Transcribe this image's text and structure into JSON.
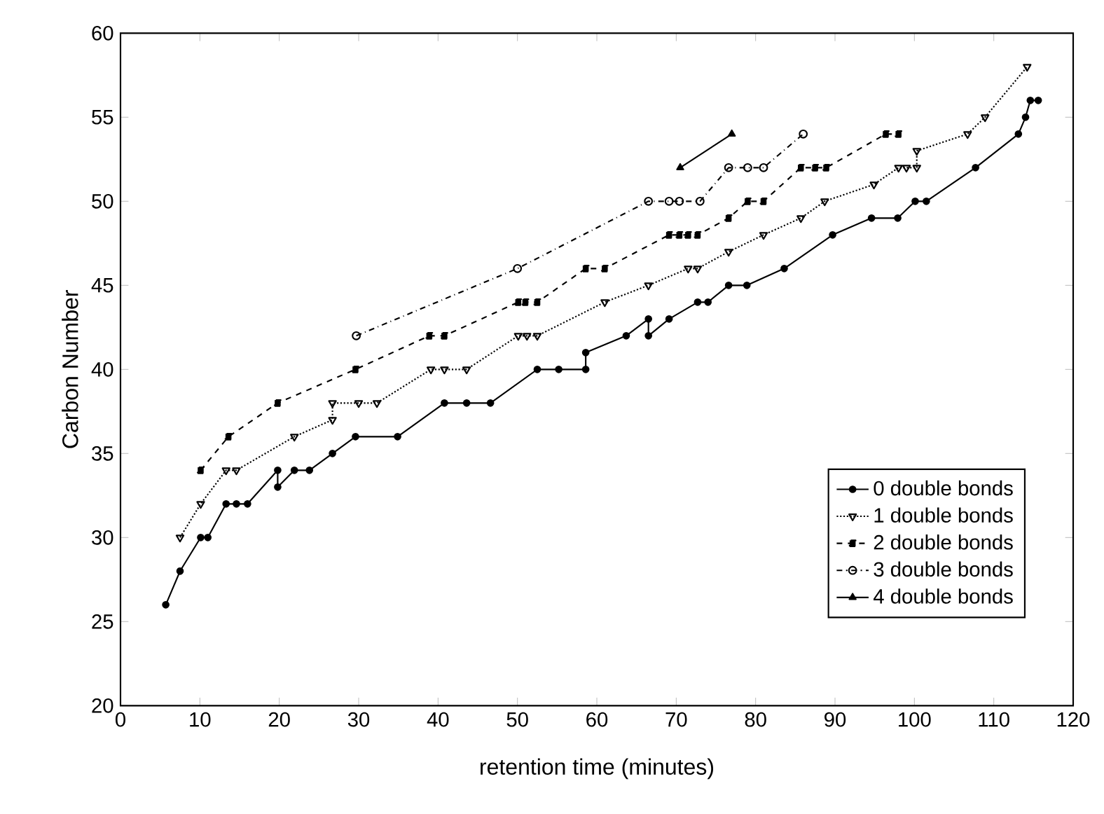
{
  "chart_data": {
    "type": "line",
    "xlabel": "retention time (minutes)",
    "ylabel": "Carbon Number",
    "xlim": [
      0,
      120
    ],
    "ylim": [
      20,
      60
    ],
    "xticks": [
      0,
      10,
      20,
      30,
      40,
      50,
      60,
      70,
      80,
      90,
      100,
      110,
      120
    ],
    "yticks": [
      20,
      25,
      30,
      35,
      40,
      45,
      50,
      55,
      60
    ],
    "grid": false,
    "legend": "bottom right",
    "series": [
      {
        "name": "0 double bonds",
        "color": "#000000",
        "marker": "circle",
        "line_style": "solid",
        "x": [
          5.7,
          7.5,
          10.1,
          11,
          13.3,
          14.6,
          16,
          19.8,
          19.8,
          21.9,
          23.8,
          26.7,
          29.6,
          34.9,
          40.8,
          43.6,
          46.6,
          52.5,
          55.2,
          58.6,
          58.6,
          63.7,
          66.5,
          66.5,
          69.1,
          72.7,
          74,
          76.6,
          78.9,
          83.6,
          89.7,
          94.6,
          97.9,
          100.1,
          101.5,
          107.7,
          113.1,
          114,
          114.6,
          115.6
        ],
        "values": [
          26,
          28,
          30,
          30,
          32,
          32,
          32,
          34,
          33,
          34,
          34,
          35,
          36,
          36,
          38,
          38,
          38,
          40,
          40,
          40,
          41,
          42,
          43,
          42,
          43,
          44,
          44,
          45,
          45,
          46,
          48,
          49,
          49,
          50,
          50,
          52,
          54,
          55,
          56,
          56
        ]
      },
      {
        "name": "1 double bonds",
        "color": "#000000",
        "marker": "triangle",
        "line_style": "dotted",
        "x": [
          7.5,
          10.1,
          13.3,
          14.6,
          21.9,
          26.7,
          26.7,
          30,
          32.3,
          39.1,
          40.8,
          43.6,
          50.1,
          51.2,
          52.5,
          61,
          66.5,
          71.5,
          72.7,
          76.6,
          81,
          85.7,
          88.7,
          94.9,
          98,
          99,
          100.3,
          100.3,
          106.7,
          108.9,
          114.2
        ],
        "values": [
          30,
          32,
          34,
          34,
          36,
          37,
          38,
          38,
          38,
          40,
          40,
          40,
          42,
          42,
          42,
          44,
          45,
          46,
          46,
          47,
          48,
          49,
          50,
          51,
          52,
          52,
          52,
          53,
          54,
          55,
          58
        ]
      },
      {
        "name": "2 double bonds",
        "color": "#000000",
        "marker": "square",
        "line_style": "dashed",
        "x": [
          10.1,
          13.6,
          19.8,
          29.6,
          38.9,
          40.8,
          50.1,
          51,
          52.5,
          58.6,
          61,
          69.1,
          70.4,
          71.5,
          72.7,
          76.6,
          79,
          81,
          85.7,
          87.5,
          88.9,
          96.4,
          98
        ],
        "values": [
          34,
          36,
          38,
          40,
          42,
          42,
          44,
          44,
          44,
          46,
          46,
          48,
          48,
          48,
          48,
          49,
          50,
          50,
          52,
          52,
          52,
          54,
          54
        ]
      },
      {
        "name": "3 double bonds",
        "color": "#000000",
        "marker": "circle_open",
        "line_style": "dashdot",
        "x": [
          29.7,
          50,
          66.5,
          69.1,
          70.4,
          73,
          76.6,
          79,
          81,
          86
        ],
        "values": [
          42,
          46,
          50,
          50,
          50,
          50,
          52,
          52,
          52,
          54
        ]
      },
      {
        "name": "4 double bonds",
        "color": "#000000",
        "marker": "triangle_up",
        "line_style": "solid",
        "x": [
          70.5,
          77
        ],
        "values": [
          52,
          54
        ]
      }
    ]
  }
}
